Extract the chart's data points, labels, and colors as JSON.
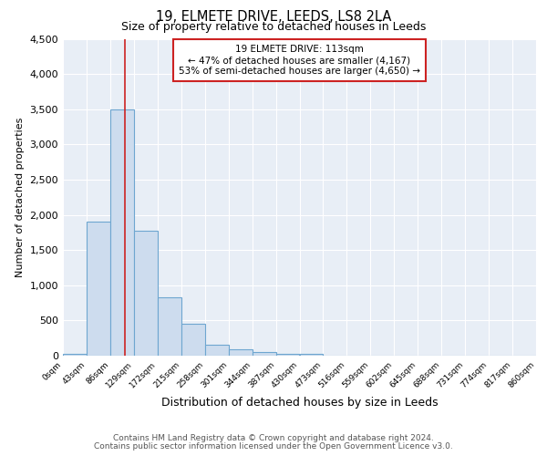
{
  "title1": "19, ELMETE DRIVE, LEEDS, LS8 2LA",
  "title2": "Size of property relative to detached houses in Leeds",
  "xlabel": "Distribution of detached houses by size in Leeds",
  "ylabel": "Number of detached properties",
  "bin_edges": [
    0,
    43,
    86,
    129,
    172,
    215,
    258,
    301,
    344,
    387,
    430,
    473,
    516,
    559,
    602,
    645,
    688,
    731,
    774,
    817,
    860
  ],
  "bar_heights": [
    30,
    1900,
    3500,
    1780,
    830,
    450,
    155,
    90,
    50,
    30,
    25,
    5,
    0,
    0,
    0,
    0,
    0,
    0,
    0,
    0
  ],
  "bar_color": "#cddcee",
  "bar_edge_color": "#6ea6d0",
  "bg_color": "#e8eef6",
  "grid_color": "#ffffff",
  "vline_x": 113,
  "vline_color": "#cc2222",
  "annotation_text": "19 ELMETE DRIVE: 113sqm\n← 47% of detached houses are smaller (4,167)\n53% of semi-detached houses are larger (4,650) →",
  "annotation_box_facecolor": "#ffffff",
  "annotation_box_edgecolor": "#cc2222",
  "ylim": [
    0,
    4500
  ],
  "yticks": [
    0,
    500,
    1000,
    1500,
    2000,
    2500,
    3000,
    3500,
    4000,
    4500
  ],
  "footer1": "Contains HM Land Registry data © Crown copyright and database right 2024.",
  "footer2": "Contains public sector information licensed under the Open Government Licence v3.0.",
  "fig_bg": "#ffffff"
}
